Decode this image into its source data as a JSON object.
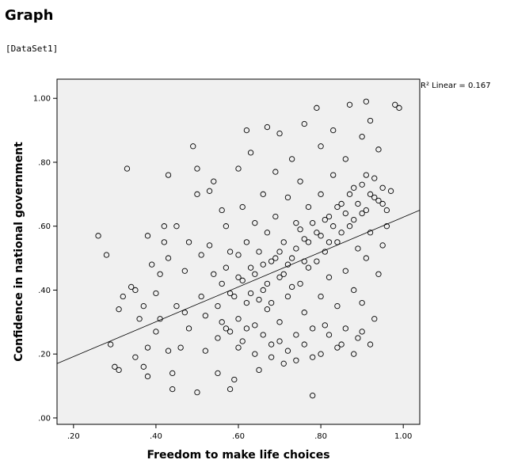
{
  "page": {
    "title": "Graph",
    "dataset_label": "[DataSet1]"
  },
  "chart_data": {
    "type": "scatter",
    "title": "",
    "xlabel": "Freedom to make life choices",
    "ylabel": "Confidence in national government",
    "xlim": [
      0.16,
      1.04
    ],
    "ylim": [
      -0.02,
      1.06
    ],
    "x_ticks": [
      0.2,
      0.4,
      0.6,
      0.8,
      1.0
    ],
    "x_tick_labels": [
      ".20",
      ".40",
      ".60",
      ".80",
      "1.00"
    ],
    "y_ticks": [
      0.0,
      0.2,
      0.4,
      0.6,
      0.8,
      1.0
    ],
    "y_tick_labels": [
      ".00",
      ".20",
      ".40",
      ".60",
      ".80",
      "1.00"
    ],
    "grid": false,
    "background": "#f0f0f0",
    "marker": "hollow-circle",
    "fit_line": {
      "type": "linear",
      "label": "R² Linear = 0.167",
      "points": [
        [
          0.16,
          0.17
        ],
        [
          1.04,
          0.65
        ]
      ]
    },
    "series": [
      {
        "points": [
          [
            0.26,
            0.57
          ],
          [
            0.28,
            0.51
          ],
          [
            0.29,
            0.23
          ],
          [
            0.3,
            0.16
          ],
          [
            0.31,
            0.15
          ],
          [
            0.31,
            0.34
          ],
          [
            0.32,
            0.38
          ],
          [
            0.33,
            0.78
          ],
          [
            0.34,
            0.41
          ],
          [
            0.35,
            0.4
          ],
          [
            0.35,
            0.19
          ],
          [
            0.36,
            0.31
          ],
          [
            0.37,
            0.35
          ],
          [
            0.37,
            0.16
          ],
          [
            0.38,
            0.57
          ],
          [
            0.38,
            0.22
          ],
          [
            0.38,
            0.13
          ],
          [
            0.39,
            0.48
          ],
          [
            0.4,
            0.39
          ],
          [
            0.4,
            0.27
          ],
          [
            0.41,
            0.31
          ],
          [
            0.41,
            0.45
          ],
          [
            0.42,
            0.55
          ],
          [
            0.42,
            0.6
          ],
          [
            0.43,
            0.76
          ],
          [
            0.43,
            0.5
          ],
          [
            0.43,
            0.21
          ],
          [
            0.44,
            0.09
          ],
          [
            0.44,
            0.14
          ],
          [
            0.45,
            0.35
          ],
          [
            0.45,
            0.6
          ],
          [
            0.46,
            0.22
          ],
          [
            0.47,
            0.46
          ],
          [
            0.47,
            0.33
          ],
          [
            0.48,
            0.28
          ],
          [
            0.48,
            0.55
          ],
          [
            0.49,
            0.85
          ],
          [
            0.5,
            0.78
          ],
          [
            0.5,
            0.7
          ],
          [
            0.5,
            0.08
          ],
          [
            0.51,
            0.51
          ],
          [
            0.51,
            0.38
          ],
          [
            0.52,
            0.32
          ],
          [
            0.52,
            0.21
          ],
          [
            0.53,
            0.71
          ],
          [
            0.53,
            0.54
          ],
          [
            0.54,
            0.74
          ],
          [
            0.54,
            0.45
          ],
          [
            0.55,
            0.35
          ],
          [
            0.55,
            0.14
          ],
          [
            0.56,
            0.65
          ],
          [
            0.56,
            0.42
          ],
          [
            0.57,
            0.28
          ],
          [
            0.57,
            0.6
          ],
          [
            0.58,
            0.52
          ],
          [
            0.58,
            0.09
          ],
          [
            0.59,
            0.38
          ],
          [
            0.59,
            0.12
          ],
          [
            0.6,
            0.78
          ],
          [
            0.6,
            0.44
          ],
          [
            0.6,
            0.31
          ],
          [
            0.61,
            0.66
          ],
          [
            0.61,
            0.24
          ],
          [
            0.62,
            0.9
          ],
          [
            0.62,
            0.55
          ],
          [
            0.62,
            0.36
          ],
          [
            0.63,
            0.83
          ],
          [
            0.63,
            0.47
          ],
          [
            0.64,
            0.61
          ],
          [
            0.64,
            0.29
          ],
          [
            0.65,
            0.15
          ],
          [
            0.65,
            0.52
          ],
          [
            0.66,
            0.7
          ],
          [
            0.66,
            0.4
          ],
          [
            0.67,
            0.91
          ],
          [
            0.67,
            0.58
          ],
          [
            0.67,
            0.34
          ],
          [
            0.68,
            0.23
          ],
          [
            0.68,
            0.49
          ],
          [
            0.69,
            0.77
          ],
          [
            0.69,
            0.63
          ],
          [
            0.7,
            0.44
          ],
          [
            0.7,
            0.89
          ],
          [
            0.7,
            0.3
          ],
          [
            0.71,
            0.55
          ],
          [
            0.71,
            0.17
          ],
          [
            0.72,
            0.69
          ],
          [
            0.72,
            0.38
          ],
          [
            0.73,
            0.81
          ],
          [
            0.73,
            0.5
          ],
          [
            0.74,
            0.26
          ],
          [
            0.74,
            0.61
          ],
          [
            0.75,
            0.74
          ],
          [
            0.75,
            0.42
          ],
          [
            0.76,
            0.92
          ],
          [
            0.76,
            0.56
          ],
          [
            0.76,
            0.33
          ],
          [
            0.77,
            0.66
          ],
          [
            0.77,
            0.47
          ],
          [
            0.78,
            0.19
          ],
          [
            0.78,
            0.07
          ],
          [
            0.79,
            0.97
          ],
          [
            0.79,
            0.58
          ],
          [
            0.8,
            0.85
          ],
          [
            0.8,
            0.38
          ],
          [
            0.8,
            0.7
          ],
          [
            0.81,
            0.29
          ],
          [
            0.81,
            0.52
          ],
          [
            0.82,
            0.63
          ],
          [
            0.82,
            0.44
          ],
          [
            0.83,
            0.9
          ],
          [
            0.83,
            0.76
          ],
          [
            0.84,
            0.35
          ],
          [
            0.84,
            0.55
          ],
          [
            0.85,
            0.67
          ],
          [
            0.85,
            0.23
          ],
          [
            0.86,
            0.81
          ],
          [
            0.86,
            0.46
          ],
          [
            0.87,
            0.6
          ],
          [
            0.87,
            0.98
          ],
          [
            0.88,
            0.72
          ],
          [
            0.88,
            0.4
          ],
          [
            0.89,
            0.53
          ],
          [
            0.89,
            0.25
          ],
          [
            0.9,
            0.88
          ],
          [
            0.9,
            0.64
          ],
          [
            0.9,
            0.36
          ],
          [
            0.91,
            0.99
          ],
          [
            0.91,
            0.76
          ],
          [
            0.91,
            0.5
          ],
          [
            0.92,
            0.93
          ],
          [
            0.92,
            0.58
          ],
          [
            0.93,
            0.31
          ],
          [
            0.93,
            0.69
          ],
          [
            0.94,
            0.84
          ],
          [
            0.94,
            0.45
          ],
          [
            0.95,
            0.54
          ],
          [
            0.95,
            0.67
          ],
          [
            0.96,
            0.6
          ],
          [
            0.97,
            0.71
          ],
          [
            0.98,
            0.98
          ],
          [
            0.99,
            0.97
          ],
          [
            0.57,
            0.47
          ],
          [
            0.58,
            0.39
          ],
          [
            0.6,
            0.51
          ],
          [
            0.61,
            0.43
          ],
          [
            0.63,
            0.39
          ],
          [
            0.64,
            0.45
          ],
          [
            0.65,
            0.37
          ],
          [
            0.66,
            0.48
          ],
          [
            0.67,
            0.42
          ],
          [
            0.68,
            0.36
          ],
          [
            0.69,
            0.5
          ],
          [
            0.7,
            0.52
          ],
          [
            0.71,
            0.45
          ],
          [
            0.72,
            0.48
          ],
          [
            0.73,
            0.41
          ],
          [
            0.74,
            0.53
          ],
          [
            0.75,
            0.59
          ],
          [
            0.76,
            0.49
          ],
          [
            0.77,
            0.55
          ],
          [
            0.78,
            0.61
          ],
          [
            0.79,
            0.49
          ],
          [
            0.8,
            0.57
          ],
          [
            0.81,
            0.62
          ],
          [
            0.82,
            0.55
          ],
          [
            0.83,
            0.6
          ],
          [
            0.84,
            0.66
          ],
          [
            0.85,
            0.58
          ],
          [
            0.86,
            0.64
          ],
          [
            0.87,
            0.7
          ],
          [
            0.88,
            0.62
          ],
          [
            0.89,
            0.67
          ],
          [
            0.9,
            0.73
          ],
          [
            0.91,
            0.65
          ],
          [
            0.92,
            0.7
          ],
          [
            0.93,
            0.75
          ],
          [
            0.94,
            0.68
          ],
          [
            0.95,
            0.72
          ],
          [
            0.96,
            0.65
          ],
          [
            0.55,
            0.25
          ],
          [
            0.56,
            0.3
          ],
          [
            0.58,
            0.27
          ],
          [
            0.6,
            0.22
          ],
          [
            0.62,
            0.28
          ],
          [
            0.64,
            0.2
          ],
          [
            0.66,
            0.26
          ],
          [
            0.68,
            0.19
          ],
          [
            0.7,
            0.24
          ],
          [
            0.72,
            0.21
          ],
          [
            0.74,
            0.18
          ],
          [
            0.76,
            0.23
          ],
          [
            0.78,
            0.28
          ],
          [
            0.8,
            0.2
          ],
          [
            0.82,
            0.26
          ],
          [
            0.84,
            0.22
          ],
          [
            0.86,
            0.28
          ],
          [
            0.88,
            0.2
          ],
          [
            0.9,
            0.27
          ],
          [
            0.92,
            0.23
          ]
        ]
      }
    ]
  }
}
